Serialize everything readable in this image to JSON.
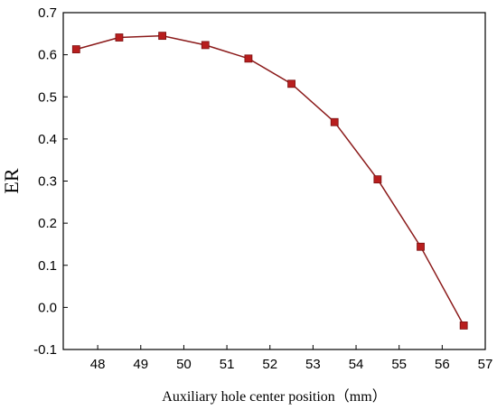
{
  "chart_data": {
    "type": "line",
    "title": "",
    "xlabel": "Auxiliary hole center position（mm）",
    "ylabel": "ER",
    "xlim": [
      47.2,
      57
    ],
    "ylim": [
      -0.1,
      0.7
    ],
    "x_ticks": [
      "48",
      "49",
      "50",
      "51",
      "52",
      "53",
      "54",
      "55",
      "56",
      "57"
    ],
    "y_ticks": [
      "-0.1",
      "0.0",
      "0.1",
      "0.2",
      "0.3",
      "0.4",
      "0.5",
      "0.6",
      "0.7"
    ],
    "grid": false,
    "legend": "none",
    "series": [
      {
        "x": [
          47.5,
          48.5,
          49.5,
          50.5,
          51.5,
          52.5,
          53.5,
          54.5,
          55.5,
          56.5
        ],
        "y": [
          0.613,
          0.641,
          0.645,
          0.623,
          0.591,
          0.531,
          0.44,
          0.304,
          0.144,
          -0.043
        ],
        "line_color": "#8b1a1a",
        "marker": "square",
        "marker_color": "#b81e1e"
      }
    ]
  }
}
